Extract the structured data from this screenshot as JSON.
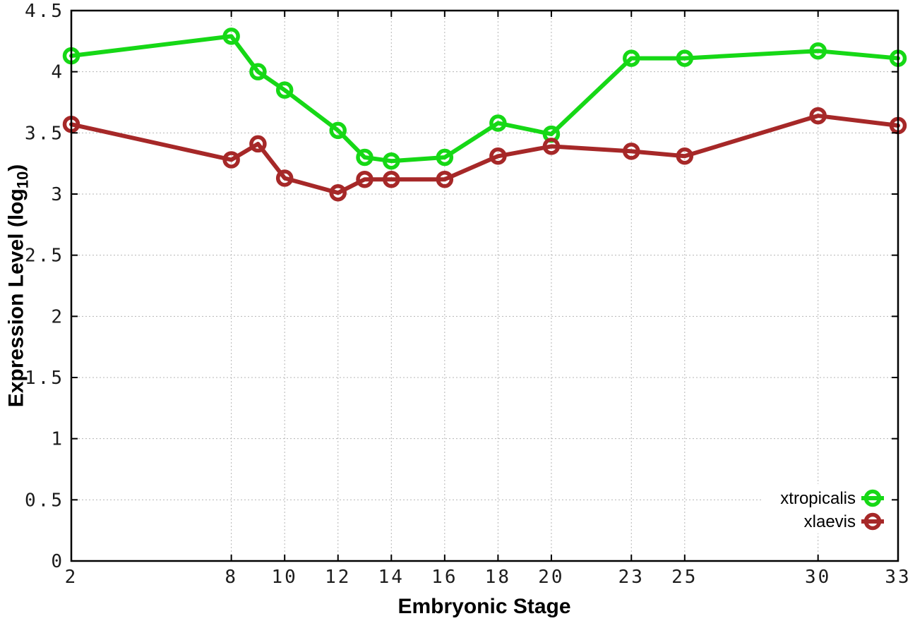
{
  "chart_data": {
    "type": "line",
    "title": "",
    "xlabel": "Embryonic Stage",
    "ylabel": "Expression Level (log10)",
    "ylabel_prefix": "Expression Level (log",
    "ylabel_sub": "10",
    "ylabel_suffix": ")",
    "x": [
      2,
      8,
      9,
      10,
      12,
      13,
      14,
      16,
      18,
      20,
      23,
      25,
      30,
      33
    ],
    "x_ticks": [
      2,
      8,
      10,
      12,
      14,
      16,
      18,
      20,
      23,
      25,
      30,
      33
    ],
    "x_tick_labels": [
      "2",
      "8",
      "10",
      "12",
      "14",
      "16",
      "18",
      "20",
      "23",
      "25",
      "30",
      "33"
    ],
    "y_ticks": [
      0,
      0.5,
      1,
      1.5,
      2,
      2.5,
      3,
      3.5,
      4,
      4.5
    ],
    "y_tick_labels": [
      "0",
      "0.5",
      "1",
      "1.5",
      "2",
      "2.5",
      "3",
      "3.5",
      "4",
      "4.5"
    ],
    "xlim": [
      2,
      33
    ],
    "ylim": [
      0,
      4.5
    ],
    "grid": true,
    "legend_position": "bottom-right",
    "series": [
      {
        "name": "xtropicalis",
        "color": "#16d816",
        "values": [
          4.13,
          4.29,
          4.0,
          3.85,
          3.52,
          3.3,
          3.27,
          3.3,
          3.58,
          3.49,
          4.11,
          4.11,
          4.17,
          4.11
        ]
      },
      {
        "name": "xlaevis",
        "color": "#a62828",
        "values": [
          3.57,
          3.28,
          3.41,
          3.13,
          3.01,
          3.12,
          3.12,
          3.12,
          3.31,
          3.39,
          3.35,
          3.31,
          3.64,
          3.56
        ]
      }
    ],
    "colors": {
      "grid": "#b5b5b5",
      "axis": "#000000",
      "tick_text": "#1c1c1c",
      "background": "#ffffff"
    }
  }
}
